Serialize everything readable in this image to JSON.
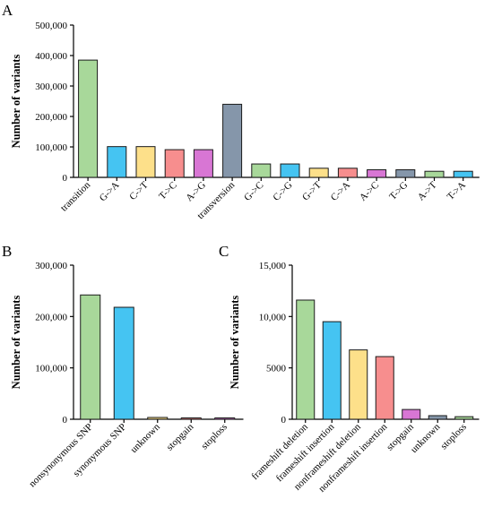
{
  "chart_data": [
    {
      "type": "bar",
      "panel": "A",
      "title": "",
      "xlabel": "",
      "ylabel": "Number of variants",
      "ylim": [
        0,
        500000
      ],
      "yticks": [
        0,
        100000,
        200000,
        300000,
        400000,
        500000
      ],
      "ytick_labels": [
        "0",
        "100,000",
        "200,000",
        "300,000",
        "400,000",
        "500,000"
      ],
      "categories": [
        "transition",
        "G->A",
        "C->T",
        "T->C",
        "A->G",
        "transversion",
        "G->C",
        "C->G",
        "G->T",
        "C->A",
        "A->C",
        "T->G",
        "A->T",
        "T->A"
      ],
      "values": [
        385000,
        101000,
        101000,
        91000,
        91000,
        240000,
        44000,
        44000,
        30000,
        30000,
        25000,
        25000,
        20000,
        20000
      ],
      "colors": [
        "#a8d89a",
        "#45c4f2",
        "#fde08a",
        "#f78e8e",
        "#d876d4",
        "#8596aa",
        "#a8d89a",
        "#45c4f2",
        "#fde08a",
        "#f78e8e",
        "#d876d4",
        "#8596aa",
        "#a8d89a",
        "#45c4f2"
      ],
      "grid": false,
      "legend": "none"
    },
    {
      "type": "bar",
      "panel": "B",
      "title": "",
      "xlabel": "",
      "ylabel": "Number of variants",
      "ylim": [
        0,
        300000
      ],
      "yticks": [
        0,
        100000,
        200000,
        300000
      ],
      "ytick_labels": [
        "0",
        "100,000",
        "200,000",
        "300,000"
      ],
      "categories": [
        "nonsynonymous SNP",
        "synonymous SNP",
        "unknown",
        "stopgain",
        "stoploss"
      ],
      "values": [
        242000,
        218000,
        3500,
        2500,
        500
      ],
      "colors": [
        "#a8d89a",
        "#45c4f2",
        "#fde08a",
        "#f78e8e",
        "#d876d4"
      ],
      "grid": false,
      "legend": "none"
    },
    {
      "type": "bar",
      "panel": "C",
      "title": "",
      "xlabel": "",
      "ylabel": "Number of variants",
      "ylim": [
        0,
        15000
      ],
      "yticks": [
        0,
        5000,
        10000,
        15000
      ],
      "ytick_labels": [
        "0",
        "5000",
        "10,000",
        "15,000"
      ],
      "categories": [
        "frameshift deletion",
        "frameshift insertion",
        "nonframeshift deletion",
        "nonframeshift insertion",
        "stopgain",
        "unknown",
        "stoploss"
      ],
      "values": [
        11600,
        9500,
        6750,
        6100,
        950,
        350,
        250
      ],
      "colors": [
        "#a8d89a",
        "#45c4f2",
        "#fde08a",
        "#f78e8e",
        "#d876d4",
        "#8596aa",
        "#a8d89a"
      ],
      "grid": false,
      "legend": "none"
    }
  ]
}
